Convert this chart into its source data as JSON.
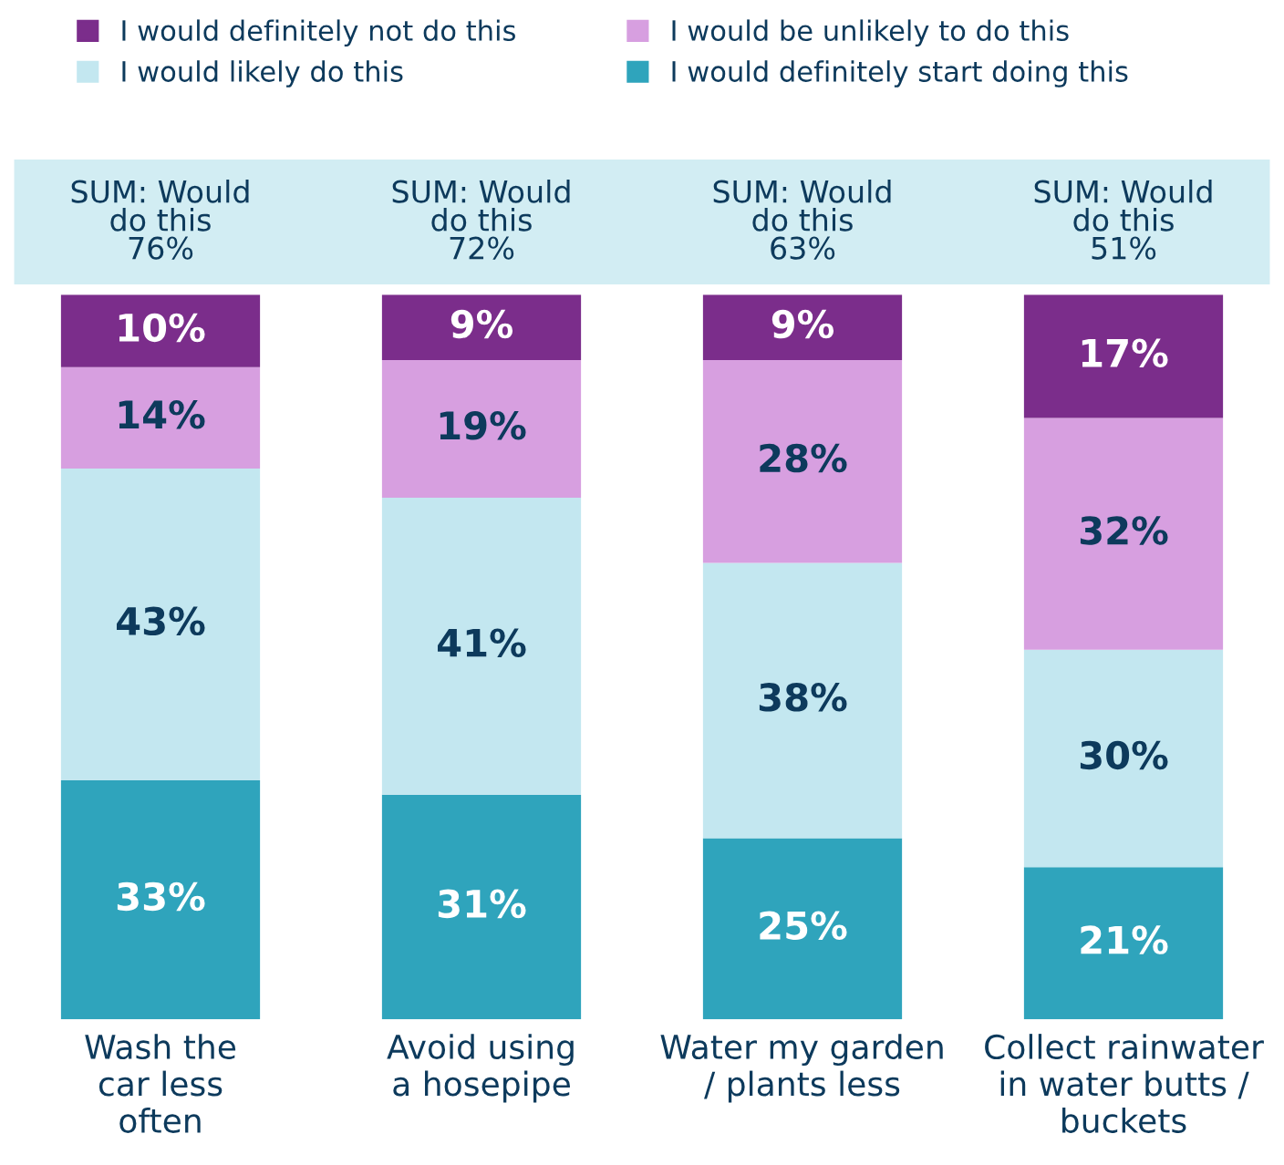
{
  "chart_data": {
    "type": "bar",
    "stacked": true,
    "categories": [
      "Wash the\ncar less\noften",
      "Avoid using\na hosepipe",
      "Water my garden\n/ plants less",
      "Collect rainwater\nin water butts /\nbuckets"
    ],
    "series": [
      {
        "name": "I would definitely start doing this",
        "color": "#2fa4bc",
        "values": [
          33,
          31,
          25,
          21
        ],
        "value_labels": [
          "33%",
          "31%",
          "25%",
          "21%"
        ]
      },
      {
        "name": "I would likely do this",
        "color": "#c3e7f0",
        "values": [
          43,
          41,
          38,
          30
        ],
        "value_labels": [
          "43%",
          "41%",
          "38%",
          "30%"
        ]
      },
      {
        "name": "I would be unlikely to do this",
        "color": "#d79fe0",
        "values": [
          14,
          19,
          28,
          32
        ],
        "value_labels": [
          "14%",
          "19%",
          "28%",
          "32%"
        ]
      },
      {
        "name": "I would definitely not do this",
        "color": "#7b2d8b",
        "values": [
          10,
          9,
          9,
          17
        ],
        "value_labels": [
          "10%",
          "9%",
          "9%",
          "17%"
        ]
      }
    ],
    "annotations": [
      "SUM: Would\ndo this\n76%",
      "SUM: Would\ndo this\n72%",
      "SUM: Would\ndo this\n63%",
      "SUM: Would\ndo this\n51%"
    ],
    "legend": "top"
  }
}
